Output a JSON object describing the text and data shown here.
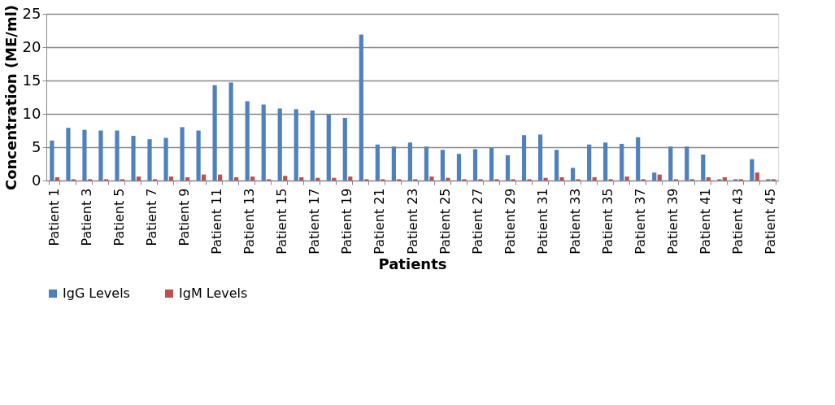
{
  "chart_data": {
    "type": "bar",
    "xlabel": "Patients",
    "ylabel": "Concentration (ME/ml)",
    "categories": [
      "Patient 1",
      null,
      "Patient 3",
      null,
      "Patient 5",
      null,
      "Patient 7",
      null,
      "Patient 9",
      null,
      "Patient 11",
      null,
      "Patient 13",
      null,
      "Patient 15",
      null,
      "Patient 17",
      null,
      "Patient 19",
      null,
      "Patient 21",
      null,
      "Patient 23",
      null,
      "Patient 25",
      null,
      "Patient 27",
      null,
      "Patient 29",
      null,
      "Patient 31",
      null,
      "Patient 33",
      null,
      "Patient 35",
      null,
      "Patient 37",
      null,
      "Patient 39",
      null,
      "Patient 41",
      null,
      "Patient 43",
      null,
      "Patient 45"
    ],
    "series": [
      {
        "name": "IgG Levels",
        "color": "#4f81bd",
        "values": [
          6.0,
          7.9,
          7.6,
          7.5,
          7.5,
          6.7,
          6.2,
          6.4,
          8.0,
          7.5,
          14.3,
          14.7,
          11.9,
          11.4,
          10.8,
          10.7,
          10.5,
          9.9,
          9.4,
          21.9,
          5.4,
          5.1,
          5.7,
          5.1,
          4.6,
          4.0,
          4.7,
          4.9,
          3.8,
          6.8,
          6.9,
          4.6,
          1.9,
          5.4,
          5.7,
          5.5,
          6.5,
          1.2,
          5.1,
          5.1,
          3.9,
          0.2,
          0.2,
          3.2,
          0.2
        ]
      },
      {
        "name": "IgM Levels",
        "color": "#c0504d",
        "values": [
          0.5,
          0.2,
          0.2,
          0.2,
          0.2,
          0.6,
          0.2,
          0.6,
          0.5,
          0.9,
          0.9,
          0.5,
          0.6,
          0.2,
          0.7,
          0.5,
          0.4,
          0.4,
          0.6,
          0.2,
          0.2,
          0.2,
          0.2,
          0.6,
          0.4,
          0.2,
          0.2,
          0.2,
          0.2,
          0.2,
          0.4,
          0.5,
          0.2,
          0.5,
          0.2,
          0.6,
          0.2,
          0.9,
          0.2,
          0.2,
          0.5,
          0.5,
          0.2,
          1.2,
          0.2
        ]
      }
    ],
    "ylim": [
      0,
      25
    ],
    "yticks": [
      0,
      5,
      10,
      15,
      20,
      25
    ],
    "grid": "y",
    "legend": "bottom"
  }
}
